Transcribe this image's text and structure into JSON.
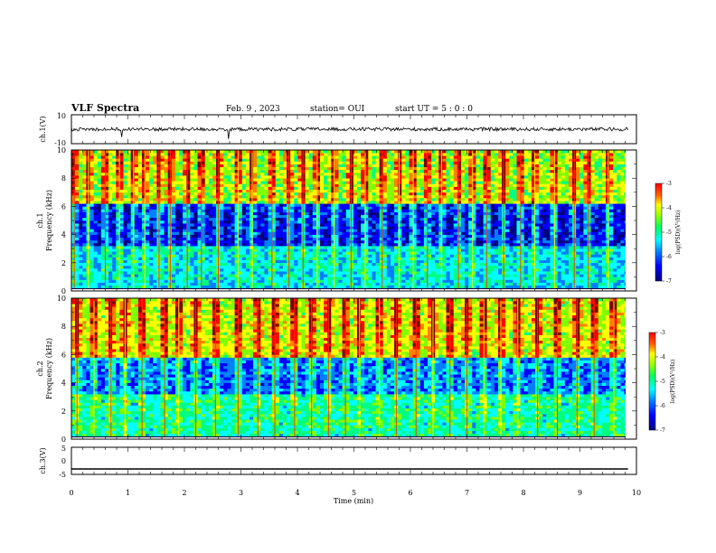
{
  "header": {
    "title": "VLF Spectra",
    "date": "Feb. 9 , 2023",
    "station": "station= OUI",
    "start": "start  UT =   5 : 0  : 0"
  },
  "colors": {
    "background": "#ffffff",
    "axes": "#000000",
    "colormap": [
      "#000080",
      "#0000ff",
      "#0080ff",
      "#00ffff",
      "#00ff80",
      "#80ff00",
      "#ffff00",
      "#ff8000",
      "#ff0000",
      "#800000"
    ]
  },
  "chart_data": [
    {
      "type": "line",
      "panel": "ch1-waveform",
      "ylabel": "ch.1(V)",
      "ylim": [
        -10,
        10
      ],
      "yticks": [
        "10",
        "-10"
      ],
      "xlim": [
        0,
        10
      ],
      "series": [
        {
          "values_baseline": 0,
          "noise_amplitude_v": 1.2
        }
      ]
    },
    {
      "type": "heatmap",
      "panel": "ch1-spectrogram",
      "ylabel": "ch.1\nFrequency  (kHz)",
      "ylabel_lines": [
        "ch.1",
        "Frequency  (kHz)"
      ],
      "ylim": [
        0,
        10
      ],
      "yticks": [
        "0",
        "2",
        "4",
        "6",
        "8",
        "10"
      ],
      "xlim": [
        0,
        9.85
      ],
      "colorbar": {
        "label": "log(PSD)(V²/Hz)",
        "range": [
          -7,
          -3
        ],
        "ticks": [
          "-3",
          "-4",
          "-5",
          "-6",
          "-7"
        ]
      },
      "bands": [
        {
          "from_khz": 0,
          "to_khz": 3.2,
          "level": 0.32
        },
        {
          "from_khz": 3.2,
          "to_khz": 6.2,
          "level": 0.12
        },
        {
          "from_khz": 6.2,
          "to_khz": 10,
          "level": 0.55
        }
      ],
      "bursts_min": [
        0.05,
        0.3,
        0.6,
        0.85,
        1.1,
        1.3,
        1.55,
        1.75,
        2.05,
        2.3,
        2.6,
        2.95,
        3.2,
        3.55,
        3.85,
        4.1,
        4.35,
        4.65,
        4.95,
        5.2,
        5.5,
        5.8,
        6.05,
        6.3,
        6.55,
        6.85,
        7.1,
        7.35,
        7.65,
        7.95,
        8.2,
        8.55,
        8.9,
        9.15,
        9.5
      ]
    },
    {
      "type": "heatmap",
      "panel": "ch2-spectrogram",
      "ylabel": "ch.2\nFrequency  (kHz)",
      "ylabel_lines": [
        "ch.2",
        "Frequency  (kHz)"
      ],
      "ylim": [
        0,
        10
      ],
      "yticks": [
        "0",
        "2",
        "4",
        "6",
        "8",
        "10"
      ],
      "xlim": [
        0,
        9.85
      ],
      "colorbar": {
        "label": "log(PSD)(V²/Hz)",
        "range": [
          -7,
          -3
        ],
        "ticks": [
          "-3",
          "-4",
          "-5",
          "-6",
          "-7"
        ]
      },
      "bands": [
        {
          "from_khz": 0,
          "to_khz": 3.2,
          "level": 0.4
        },
        {
          "from_khz": 3.2,
          "to_khz": 5.8,
          "level": 0.22
        },
        {
          "from_khz": 5.8,
          "to_khz": 10,
          "level": 0.6
        }
      ],
      "bursts_min": [
        0.1,
        0.4,
        0.7,
        0.95,
        1.25,
        1.65,
        1.9,
        2.2,
        2.55,
        2.95,
        3.3,
        3.6,
        3.95,
        4.25,
        4.55,
        4.85,
        5.1,
        5.45,
        5.75,
        6.1,
        6.4,
        6.7,
        7.0,
        7.3,
        7.6,
        7.9,
        8.25,
        8.6,
        8.95,
        9.25,
        9.6
      ]
    },
    {
      "type": "line",
      "panel": "ch3-waveform",
      "ylabel": "ch.3(V)",
      "ylim": [
        -5,
        5
      ],
      "yticks": [
        "5",
        "0",
        "-5"
      ],
      "xlim": [
        0,
        10
      ],
      "xlabel": "Time  (min)",
      "xticks": [
        "0",
        "1",
        "2",
        "3",
        "4",
        "5",
        "6",
        "7",
        "8",
        "9",
        "10"
      ],
      "series": [
        {
          "values_baseline": -3
        }
      ]
    }
  ]
}
